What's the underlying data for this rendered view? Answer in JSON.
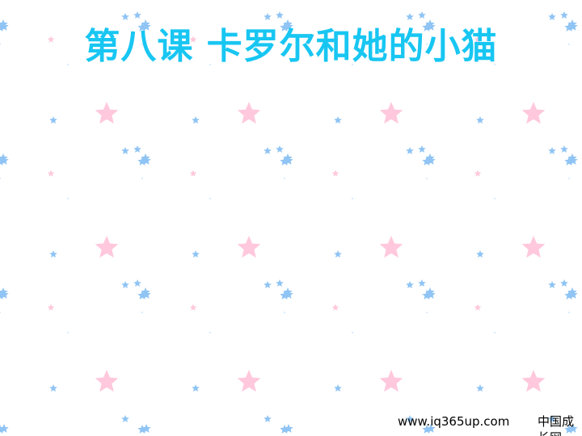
{
  "slide": {
    "title": "第八课 卡罗尔和她的小猫",
    "footer_url": "www.iq365up.com",
    "footer_site": "中国成长网"
  },
  "colors": {
    "title": "#18c6f2",
    "star_pink": "#ffc8dc",
    "star_blue": "#8fc4f4",
    "background": "#ffffff"
  },
  "background_pattern": {
    "icon": "star-icon",
    "tones": [
      "pink",
      "blue"
    ]
  }
}
